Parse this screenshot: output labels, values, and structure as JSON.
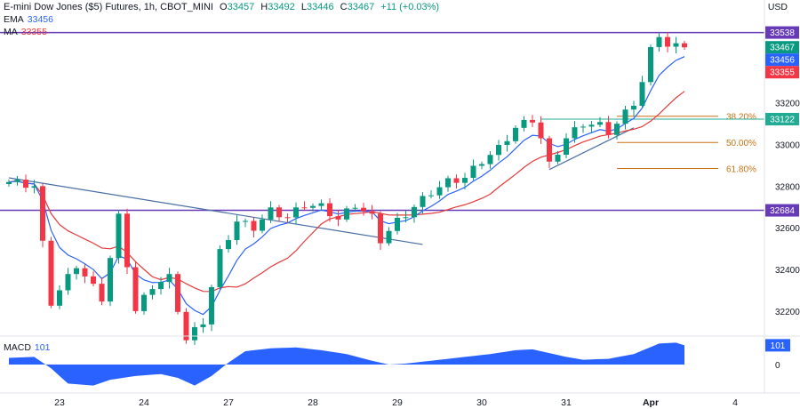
{
  "header": {
    "symbol": "E-mini Dow Jones ($5) Futures, 1h, CBOT_MINI",
    "o_label": "O",
    "o_value": "33457",
    "h_label": "H",
    "h_value": "33492",
    "l_label": "L",
    "l_value": "33446",
    "c_label": "C",
    "c_value": "33467",
    "change": "+11 (+0.03%)"
  },
  "indicators": {
    "ema_label": "EMA",
    "ema_value": "33456",
    "ma_label": "MA",
    "ma_value": "33355",
    "macd_label": "MACD",
    "macd_value": "101"
  },
  "axis": {
    "currency": "USD"
  },
  "colors": {
    "up": "#089981",
    "down": "#f23645",
    "ema": "#2962ff",
    "ma": "#e5393b",
    "hline": "#673ab7",
    "fib": "#cc7014",
    "macd": "#2962ff",
    "trend": "#4a6fa5"
  },
  "chart_data": {
    "type": "candlestick",
    "price_ylim": [
      32080,
      33660
    ],
    "price_ticks": [
      {
        "label": "33200",
        "value": 33200
      },
      {
        "label": "33000",
        "value": 33000
      },
      {
        "label": "32800",
        "value": 32800
      },
      {
        "label": "32600",
        "value": 32600
      },
      {
        "label": "32400",
        "value": 32400
      },
      {
        "label": "32200",
        "value": 32200
      }
    ],
    "price_badges": [
      {
        "label": "33538",
        "value": 33538,
        "color": "#673ab7"
      },
      {
        "label": "33467",
        "value": 33467,
        "color": "#089981"
      },
      {
        "label": "33456",
        "value": 33456,
        "color": "#2962ff"
      },
      {
        "label": "33355",
        "value": 33355,
        "color": "#f23645"
      },
      {
        "label": "33122",
        "value": 33122,
        "color": "#22ab94"
      },
      {
        "label": "32684",
        "value": 32684,
        "color": "#673ab7"
      }
    ],
    "horizontal_lines": [
      {
        "value": 33538,
        "color": "#673ab7"
      },
      {
        "value": 32684,
        "color": "#673ab7"
      }
    ],
    "fib_levels": [
      {
        "label": "38.20%",
        "value": 33136
      },
      {
        "label": "50.00%",
        "value": 33010
      },
      {
        "label": "61.80%",
        "value": 32885
      }
    ],
    "date_ticks": [
      {
        "label": "23",
        "bar": 6
      },
      {
        "label": "24",
        "bar": 16
      },
      {
        "label": "27",
        "bar": 26
      },
      {
        "label": "28",
        "bar": 36
      },
      {
        "label": "29",
        "bar": 46
      },
      {
        "label": "30",
        "bar": 56
      },
      {
        "label": "31",
        "bar": 66
      },
      {
        "label": "Apr",
        "bar": 76
      },
      {
        "label": "4",
        "bar": 86
      }
    ],
    "key_closes": [
      [
        0,
        32820
      ],
      [
        3,
        32800
      ],
      [
        5,
        32240
      ],
      [
        8,
        32420
      ],
      [
        11,
        32260
      ],
      [
        13,
        32650
      ],
      [
        15,
        32200
      ],
      [
        17,
        32320
      ],
      [
        19,
        32360
      ],
      [
        21,
        32060
      ],
      [
        23,
        32150
      ],
      [
        25,
        32480
      ],
      [
        27,
        32630
      ],
      [
        29,
        32600
      ],
      [
        31,
        32680
      ],
      [
        33,
        32650
      ],
      [
        35,
        32710
      ],
      [
        37,
        32700
      ],
      [
        39,
        32640
      ],
      [
        41,
        32710
      ],
      [
        43,
        32650
      ],
      [
        44,
        32540
      ],
      [
        46,
        32630
      ],
      [
        48,
        32700
      ],
      [
        50,
        32770
      ],
      [
        52,
        32820
      ],
      [
        54,
        32840
      ],
      [
        56,
        32920
      ],
      [
        58,
        32980
      ],
      [
        60,
        33080
      ],
      [
        62,
        33120
      ],
      [
        63,
        33030
      ],
      [
        64,
        32900
      ],
      [
        66,
        33030
      ],
      [
        68,
        33100
      ],
      [
        70,
        33090
      ],
      [
        71,
        33060
      ],
      [
        72,
        33100
      ],
      [
        74,
        33200
      ],
      [
        75,
        33300
      ],
      [
        76,
        33450
      ],
      [
        77,
        33530
      ],
      [
        78,
        33470
      ],
      [
        80,
        33467
      ]
    ],
    "trendlines": [
      {
        "from": [
          0,
          32840
        ],
        "to": [
          49,
          32520
        ]
      },
      {
        "from": [
          64,
          32880
        ],
        "to": [
          74,
          33080
        ]
      }
    ],
    "macd": {
      "ylim": [
        -140,
        140
      ],
      "zero_label": "0",
      "key_values": [
        [
          0,
          35
        ],
        [
          3,
          40
        ],
        [
          5,
          -20
        ],
        [
          7,
          -100
        ],
        [
          10,
          -110
        ],
        [
          12,
          -80
        ],
        [
          15,
          -60
        ],
        [
          18,
          -50
        ],
        [
          20,
          -70
        ],
        [
          22,
          -110
        ],
        [
          24,
          -60
        ],
        [
          26,
          10
        ],
        [
          28,
          70
        ],
        [
          31,
          85
        ],
        [
          34,
          90
        ],
        [
          37,
          75
        ],
        [
          40,
          55
        ],
        [
          43,
          20
        ],
        [
          45,
          0
        ],
        [
          47,
          5
        ],
        [
          50,
          20
        ],
        [
          53,
          35
        ],
        [
          57,
          55
        ],
        [
          60,
          75
        ],
        [
          62,
          80
        ],
        [
          64,
          60
        ],
        [
          66,
          40
        ],
        [
          68,
          25
        ],
        [
          71,
          30
        ],
        [
          74,
          55
        ],
        [
          77,
          110
        ],
        [
          79,
          115
        ],
        [
          80,
          101
        ]
      ]
    }
  }
}
